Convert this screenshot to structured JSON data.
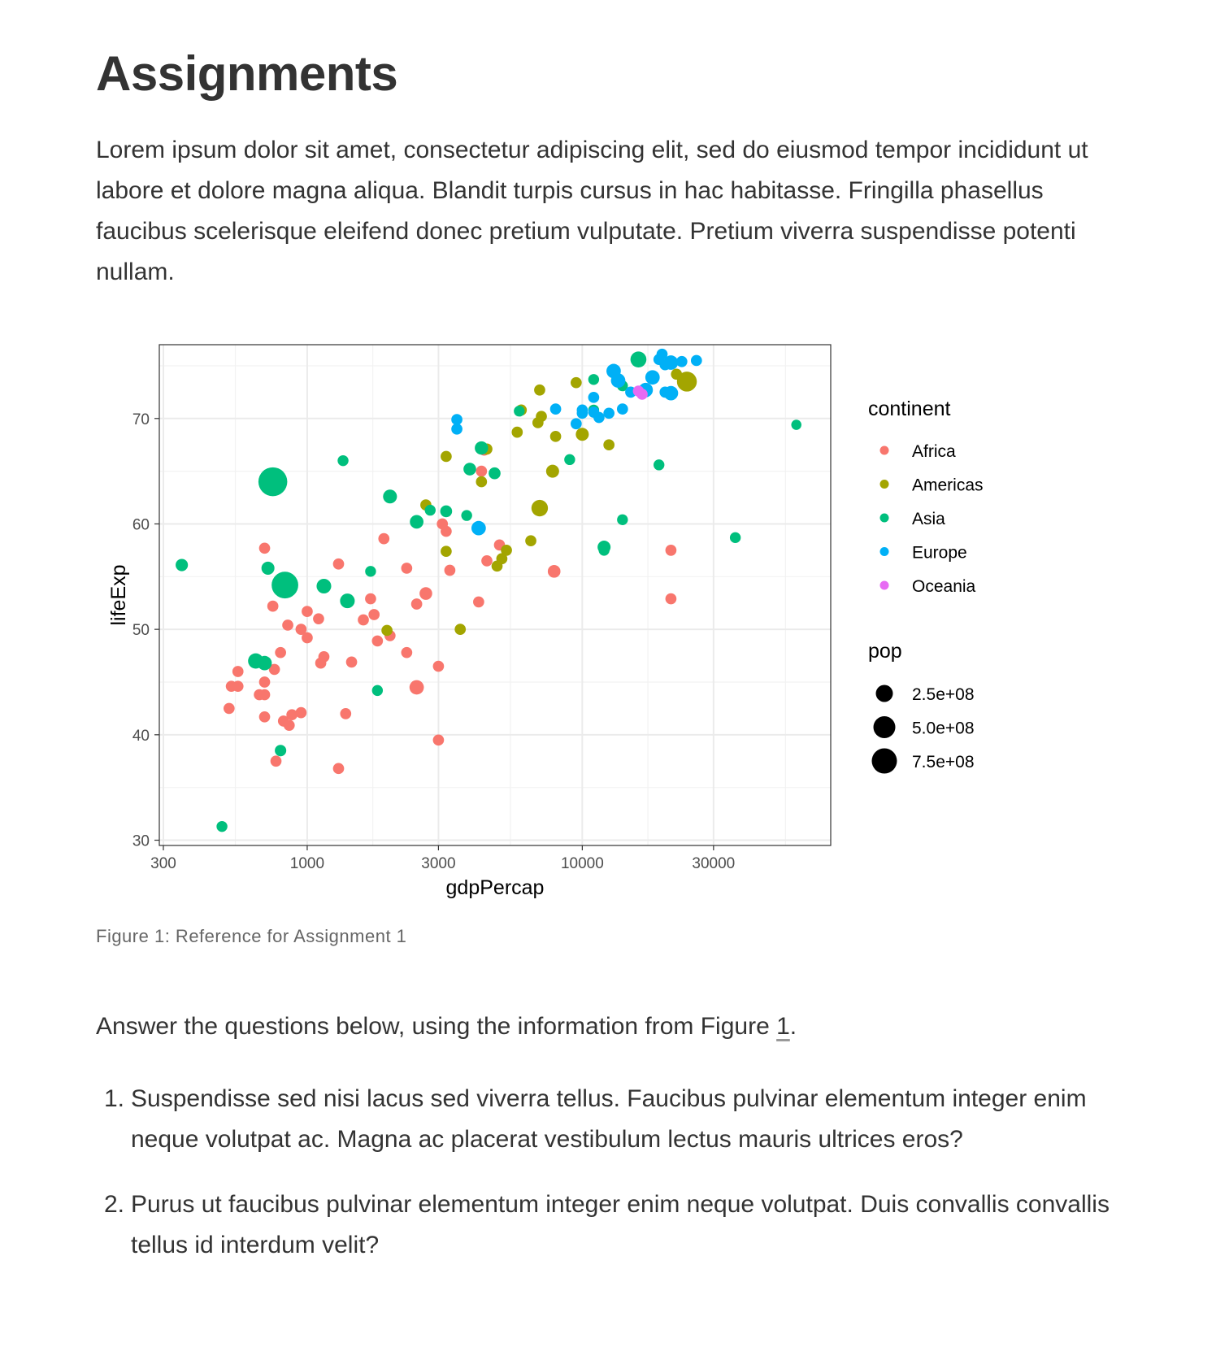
{
  "page": {
    "title": "Assignments",
    "intro": "Lorem ipsum dolor sit amet, consectetur adipiscing elit, sed do eiusmod tempor incididunt ut labore et dolore magna aliqua. Blandit turpis cursus in hac habitasse. Fringilla phasellus faucibus scelerisque eleifend donec pretium vulputate. Pretium viverra suspendisse potenti nullam.",
    "caption": "Figure 1: Reference for Assignment 1",
    "lead_before": "Answer the questions below, using the information from Figure ",
    "lead_ref": "1",
    "lead_after": ".",
    "questions": [
      {
        "number": "1.",
        "text": "Suspendisse sed nisi lacus sed viverra tellus. Faucibus pulvinar elementum integer enim neque volutpat ac. Magna ac placerat vestibulum lectus mauris ultrices eros?"
      },
      {
        "number": "2.",
        "text": "Purus ut faucibus pulvinar elementum integer enim neque volutpat. Duis convallis convallis tellus id interdum velit?"
      }
    ]
  },
  "chart_data": {
    "type": "scatter",
    "title": "",
    "xlabel": "gdpPercap",
    "ylabel": "lifeExp",
    "x_scale": "log10",
    "xlim": [
      290,
      80000
    ],
    "ylim": [
      29.5,
      77
    ],
    "x_ticks": [
      300,
      1000,
      3000,
      10000,
      30000
    ],
    "x_tick_labels": [
      "300",
      "1000",
      "3000",
      "10000",
      "30000"
    ],
    "y_ticks": [
      30,
      40,
      50,
      60,
      70
    ],
    "y_tick_labels": [
      "30",
      "40",
      "50",
      "60",
      "70"
    ],
    "grid": true,
    "legend_position": "right",
    "color_legend": {
      "title": "continent",
      "entries": [
        {
          "name": "Africa",
          "color": "#F8766D"
        },
        {
          "name": "Americas",
          "color": "#A3A500"
        },
        {
          "name": "Asia",
          "color": "#00BF7D"
        },
        {
          "name": "Europe",
          "color": "#00B0F6"
        },
        {
          "name": "Oceania",
          "color": "#E76BF3"
        }
      ]
    },
    "size_legend": {
      "title": "pop",
      "entries": [
        {
          "label": "2.5e+08",
          "value": 250000000
        },
        {
          "label": "5.0e+08",
          "value": 500000000
        },
        {
          "label": "7.5e+08",
          "value": 750000000
        }
      ]
    },
    "series": [
      {
        "name": "Africa",
        "points": [
          {
            "x": 4400,
            "y": 67
          },
          {
            "x": 4300,
            "y": 65
          },
          {
            "x": 3100,
            "y": 60
          },
          {
            "x": 3200,
            "y": 59.3
          },
          {
            "x": 5000,
            "y": 58
          },
          {
            "x": 7900,
            "y": 55.5
          },
          {
            "x": 3300,
            "y": 55.6
          },
          {
            "x": 4500,
            "y": 56.5
          },
          {
            "x": 1900,
            "y": 58.6
          },
          {
            "x": 1300,
            "y": 56.2
          },
          {
            "x": 2300,
            "y": 55.8
          },
          {
            "x": 2700,
            "y": 53.4
          },
          {
            "x": 2500,
            "y": 52.4
          },
          {
            "x": 4200,
            "y": 52.6
          },
          {
            "x": 1700,
            "y": 52.9
          },
          {
            "x": 1750,
            "y": 51.4
          },
          {
            "x": 1600,
            "y": 50.9
          },
          {
            "x": 1100,
            "y": 51
          },
          {
            "x": 1000,
            "y": 51.7
          },
          {
            "x": 950,
            "y": 50.0
          },
          {
            "x": 850,
            "y": 50.4
          },
          {
            "x": 1000,
            "y": 49.2
          },
          {
            "x": 2000,
            "y": 49.4
          },
          {
            "x": 1800,
            "y": 48.9
          },
          {
            "x": 700,
            "y": 57.7
          },
          {
            "x": 750,
            "y": 52.2
          },
          {
            "x": 800,
            "y": 47.8
          },
          {
            "x": 1150,
            "y": 47.4
          },
          {
            "x": 1120,
            "y": 46.8
          },
          {
            "x": 1450,
            "y": 46.9
          },
          {
            "x": 2300,
            "y": 47.8
          },
          {
            "x": 3000,
            "y": 46.5
          },
          {
            "x": 2500,
            "y": 44.5
          },
          {
            "x": 760,
            "y": 46.2
          },
          {
            "x": 700,
            "y": 45.0
          },
          {
            "x": 560,
            "y": 46.0
          },
          {
            "x": 530,
            "y": 44.6
          },
          {
            "x": 560,
            "y": 44.6
          },
          {
            "x": 670,
            "y": 43.8
          },
          {
            "x": 700,
            "y": 43.8
          },
          {
            "x": 520,
            "y": 42.5
          },
          {
            "x": 700,
            "y": 41.7
          },
          {
            "x": 820,
            "y": 41.3
          },
          {
            "x": 860,
            "y": 40.9
          },
          {
            "x": 880,
            "y": 41.9
          },
          {
            "x": 950,
            "y": 42.1
          },
          {
            "x": 1380,
            "y": 42.0
          },
          {
            "x": 3000,
            "y": 39.5
          },
          {
            "x": 770,
            "y": 37.5
          },
          {
            "x": 1300,
            "y": 36.8
          },
          {
            "x": 21000,
            "y": 57.5
          },
          {
            "x": 21000,
            "y": 52.9
          }
        ]
      },
      {
        "name": "Americas",
        "points": [
          {
            "x": 24000,
            "y": 73.5
          },
          {
            "x": 22000,
            "y": 74.2
          },
          {
            "x": 9500,
            "y": 73.4
          },
          {
            "x": 7000,
            "y": 72.7
          },
          {
            "x": 6000,
            "y": 70.8
          },
          {
            "x": 7100,
            "y": 70.2
          },
          {
            "x": 6900,
            "y": 69.6
          },
          {
            "x": 5800,
            "y": 68.7
          },
          {
            "x": 10000,
            "y": 68.5
          },
          {
            "x": 8000,
            "y": 68.3
          },
          {
            "x": 12500,
            "y": 67.5
          },
          {
            "x": 4500,
            "y": 67.1
          },
          {
            "x": 3200,
            "y": 66.4
          },
          {
            "x": 7800,
            "y": 65.0
          },
          {
            "x": 4300,
            "y": 64.0
          },
          {
            "x": 7000,
            "y": 61.5
          },
          {
            "x": 2700,
            "y": 61.8
          },
          {
            "x": 6500,
            "y": 58.4
          },
          {
            "x": 5300,
            "y": 57.5
          },
          {
            "x": 3200,
            "y": 57.4
          },
          {
            "x": 5100,
            "y": 56.7
          },
          {
            "x": 4900,
            "y": 56.0
          },
          {
            "x": 3600,
            "y": 50.0
          },
          {
            "x": 1950,
            "y": 49.9
          }
        ]
      },
      {
        "name": "Asia",
        "points": [
          {
            "x": 750,
            "y": 64
          },
          {
            "x": 830,
            "y": 54.2
          },
          {
            "x": 350,
            "y": 56.1
          },
          {
            "x": 720,
            "y": 55.8
          },
          {
            "x": 1150,
            "y": 54.1
          },
          {
            "x": 1400,
            "y": 52.7
          },
          {
            "x": 1700,
            "y": 55.5
          },
          {
            "x": 650,
            "y": 47.0
          },
          {
            "x": 700,
            "y": 46.8
          },
          {
            "x": 1800,
            "y": 44.2
          },
          {
            "x": 800,
            "y": 38.5
          },
          {
            "x": 490,
            "y": 31.3
          },
          {
            "x": 1350,
            "y": 66
          },
          {
            "x": 2000,
            "y": 62.6
          },
          {
            "x": 2500,
            "y": 60.2
          },
          {
            "x": 2800,
            "y": 61.3
          },
          {
            "x": 3200,
            "y": 61.2
          },
          {
            "x": 3800,
            "y": 60.8
          },
          {
            "x": 3900,
            "y": 65.2
          },
          {
            "x": 4300,
            "y": 67.2
          },
          {
            "x": 4800,
            "y": 64.8
          },
          {
            "x": 5900,
            "y": 70.7
          },
          {
            "x": 9000,
            "y": 66.1
          },
          {
            "x": 11000,
            "y": 70.8
          },
          {
            "x": 11000,
            "y": 73.7
          },
          {
            "x": 14000,
            "y": 73.1
          },
          {
            "x": 16000,
            "y": 75.6
          },
          {
            "x": 19000,
            "y": 65.6
          },
          {
            "x": 14000,
            "y": 60.4
          },
          {
            "x": 12000,
            "y": 57.8
          },
          {
            "x": 12000,
            "y": 57.5
          },
          {
            "x": 36000,
            "y": 58.7
          },
          {
            "x": 60000,
            "y": 69.4
          }
        ]
      },
      {
        "name": "Europe",
        "points": [
          {
            "x": 3500,
            "y": 69.9
          },
          {
            "x": 3500,
            "y": 69.0
          },
          {
            "x": 4200,
            "y": 59.6
          },
          {
            "x": 8000,
            "y": 70.9
          },
          {
            "x": 9500,
            "y": 69.5
          },
          {
            "x": 10000,
            "y": 70.5
          },
          {
            "x": 10000,
            "y": 70.8
          },
          {
            "x": 11000,
            "y": 70.6
          },
          {
            "x": 11000,
            "y": 72.0
          },
          {
            "x": 11500,
            "y": 70.1
          },
          {
            "x": 12500,
            "y": 70.5
          },
          {
            "x": 13000,
            "y": 74.5
          },
          {
            "x": 13500,
            "y": 73.6
          },
          {
            "x": 14000,
            "y": 70.9
          },
          {
            "x": 15000,
            "y": 72.5
          },
          {
            "x": 17000,
            "y": 72.7
          },
          {
            "x": 18000,
            "y": 73.9
          },
          {
            "x": 19000,
            "y": 75.6
          },
          {
            "x": 19500,
            "y": 76.1
          },
          {
            "x": 20000,
            "y": 75.1
          },
          {
            "x": 21000,
            "y": 75.3
          },
          {
            "x": 20000,
            "y": 72.5
          },
          {
            "x": 21000,
            "y": 72.4
          },
          {
            "x": 23000,
            "y": 75.4
          },
          {
            "x": 26000,
            "y": 75.5
          }
        ]
      },
      {
        "name": "Oceania",
        "points": [
          {
            "x": 16500,
            "y": 72.3
          },
          {
            "x": 16000,
            "y": 72.6
          }
        ]
      }
    ],
    "sizes": {
      "Asia": [
        700000000,
        555000000,
        25000000,
        35000000,
        65000000,
        65000000,
        10000000,
        80000000,
        60000000,
        10000000,
        15000000,
        10000000,
        10000000,
        50000000,
        45000000,
        10000000,
        20000000,
        10000000,
        30000000,
        40000000,
        20000000,
        10000000,
        10000000,
        10000000,
        10000000,
        10000000,
        95000000,
        10000000,
        10000000,
        35000000,
        10000000,
        10000000,
        5000000
      ],
      "Americas_big": [
        220000000,
        110000000,
        35000000
      ]
    }
  }
}
